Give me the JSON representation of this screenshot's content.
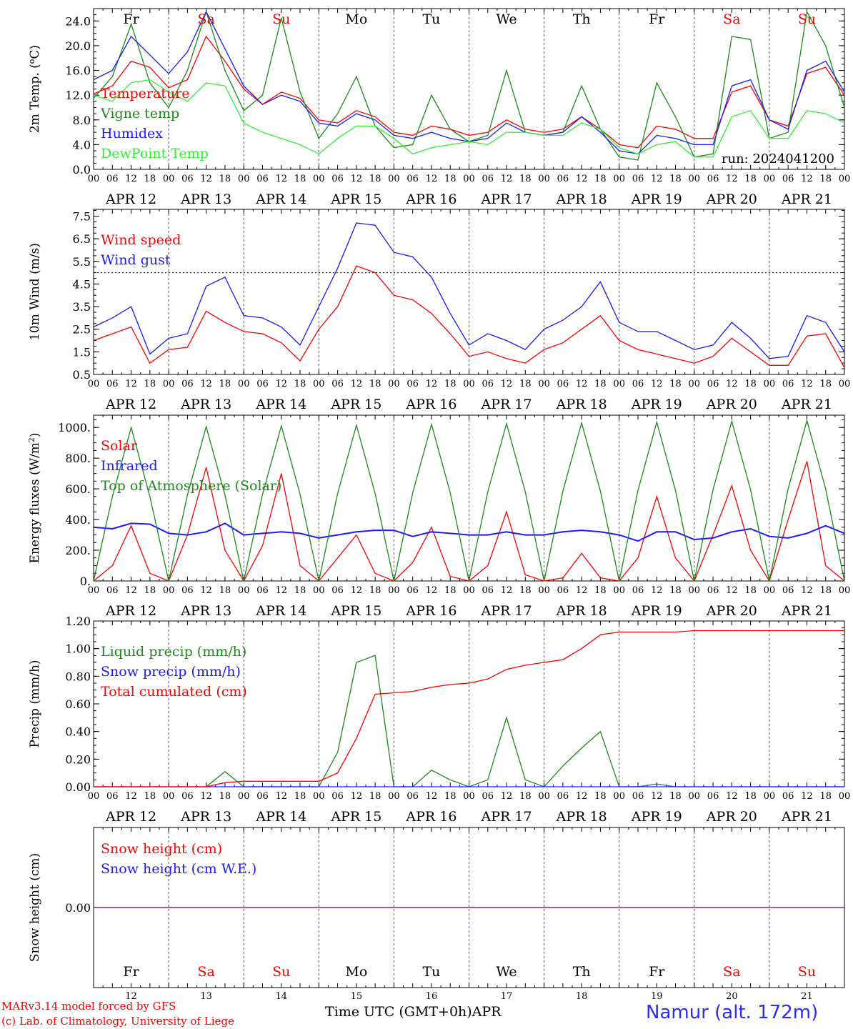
{
  "colors": {
    "red": "#ff0000",
    "green": "#1a8a1a",
    "blue": "#1a1aff",
    "lightgreen": "#33ee33",
    "purple": "#7a1a9a",
    "weekend": "#ff0000",
    "weekday": "#000000"
  },
  "days": [
    {
      "dow": "Fr",
      "date": "APR 12",
      "num": "12",
      "weekend": false
    },
    {
      "dow": "Sa",
      "date": "APR 13",
      "num": "13",
      "weekend": true
    },
    {
      "dow": "Su",
      "date": "APR 14",
      "num": "14",
      "weekend": true
    },
    {
      "dow": "Mo",
      "date": "APR 15",
      "num": "15",
      "weekend": false
    },
    {
      "dow": "Tu",
      "date": "APR 16",
      "num": "16",
      "weekend": false
    },
    {
      "dow": "We",
      "date": "APR 17",
      "num": "17",
      "weekend": false
    },
    {
      "dow": "Th",
      "date": "APR 18",
      "num": "18",
      "weekend": false
    },
    {
      "dow": "Fr",
      "date": "APR 19",
      "num": "19",
      "weekend": false
    },
    {
      "dow": "Sa",
      "date": "APR 20",
      "num": "20",
      "weekend": true
    },
    {
      "dow": "Su",
      "date": "APR 21",
      "num": "21",
      "weekend": true
    }
  ],
  "hour_labels": [
    "00",
    "06",
    "12",
    "18"
  ],
  "footer": {
    "model_line": "MARv3.14 model forced by GFS",
    "credit_line": "(c) Lab. of Climatology, University of Liege",
    "xlabel": "Time UTC (GMT+0h)",
    "month": "APR",
    "location": "Namur (alt. 172m)"
  },
  "chart_data": [
    {
      "type": "line",
      "ylabel": "2m Temp. (oC)",
      "ylim": [
        0,
        26
      ],
      "yticks": [
        0.0,
        4.0,
        8.0,
        12.0,
        16.0,
        20.0,
        24.0
      ],
      "ytick_labels": [
        "0.0",
        "4.0",
        "8.0",
        "12.0",
        "16.0",
        "20.0",
        "24.0"
      ],
      "annotation": "run: 2024041200",
      "x_hours": [
        0,
        6,
        12,
        18,
        24,
        30,
        36,
        42,
        48,
        54,
        60,
        66,
        72,
        78,
        84,
        90,
        96,
        102,
        108,
        114,
        120,
        126,
        132,
        138,
        144,
        150,
        156,
        162,
        168,
        174,
        180,
        186,
        192,
        198,
        204,
        210,
        216,
        222,
        228,
        234,
        240
      ],
      "series": [
        {
          "name": "Temperature",
          "color": "red",
          "values": [
            12.2,
            13.5,
            17.5,
            16.5,
            13.2,
            14.5,
            21.5,
            17.5,
            13.0,
            10.5,
            12.5,
            11.5,
            8.0,
            7.5,
            9.5,
            8.5,
            6.0,
            5.5,
            7.0,
            6.5,
            5.5,
            6.0,
            8.0,
            6.5,
            6.0,
            6.5,
            8.5,
            6.5,
            4.0,
            3.5,
            7.0,
            6.5,
            5.0,
            5.0,
            12.5,
            13.5,
            8.0,
            7.0,
            15.5,
            16.5,
            12.0
          ]
        },
        {
          "name": "Vigne temp",
          "color": "green",
          "values": [
            11.5,
            15.0,
            23.5,
            14.0,
            10.0,
            16.0,
            25.5,
            16.0,
            9.5,
            12.0,
            24.5,
            12.5,
            5.0,
            9.0,
            15.0,
            7.0,
            3.5,
            4.0,
            12.0,
            6.5,
            4.5,
            5.5,
            16.0,
            6.0,
            5.5,
            6.0,
            13.5,
            6.5,
            2.0,
            1.5,
            14.0,
            8.5,
            2.0,
            2.5,
            21.5,
            21.0,
            5.0,
            6.0,
            25.5,
            20.0,
            10.0
          ]
        },
        {
          "name": "Humidex",
          "color": "blue",
          "values": [
            14.5,
            16.0,
            21.5,
            18.5,
            15.5,
            19.0,
            25.5,
            19.5,
            13.5,
            10.5,
            12.0,
            11.0,
            7.5,
            7.0,
            9.0,
            8.0,
            5.5,
            5.0,
            6.0,
            5.0,
            4.5,
            5.0,
            7.5,
            6.0,
            5.5,
            6.0,
            8.5,
            6.0,
            3.0,
            2.5,
            5.5,
            5.0,
            4.0,
            4.0,
            13.5,
            14.5,
            8.0,
            6.5,
            16.0,
            17.5,
            12.5
          ]
        },
        {
          "name": "DewPoint Temp",
          "color": "lightgreen",
          "values": [
            12.0,
            11.0,
            14.0,
            14.5,
            12.5,
            11.0,
            14.0,
            13.5,
            7.5,
            6.0,
            5.0,
            4.0,
            2.5,
            5.0,
            7.0,
            7.0,
            5.0,
            2.5,
            3.5,
            4.0,
            4.5,
            4.0,
            6.0,
            6.0,
            5.5,
            5.5,
            7.5,
            6.5,
            3.5,
            2.5,
            4.0,
            4.5,
            2.0,
            2.0,
            8.5,
            9.5,
            5.0,
            5.0,
            9.5,
            9.0,
            7.5
          ]
        }
      ]
    },
    {
      "type": "line",
      "ylabel": "10m Wind (m/s)",
      "ylim": [
        0.5,
        7.8
      ],
      "yticks": [
        0.5,
        1.5,
        2.5,
        3.5,
        4.5,
        5.5,
        6.5,
        7.5
      ],
      "ytick_labels": [
        "0.5",
        "1.5",
        "2.5",
        "3.5",
        "4.5",
        "5.5",
        "6.5",
        "7.5"
      ],
      "reference_line": 5.0,
      "x_hours": [
        0,
        6,
        12,
        18,
        24,
        30,
        36,
        42,
        48,
        54,
        60,
        66,
        72,
        78,
        84,
        90,
        96,
        102,
        108,
        114,
        120,
        126,
        132,
        138,
        144,
        150,
        156,
        162,
        168,
        174,
        180,
        186,
        192,
        198,
        204,
        210,
        216,
        222,
        228,
        234,
        240
      ],
      "series": [
        {
          "name": "Wind speed",
          "color": "red",
          "values": [
            2.0,
            2.3,
            2.6,
            1.0,
            1.6,
            1.7,
            3.3,
            2.8,
            2.4,
            2.3,
            1.9,
            1.1,
            2.5,
            3.5,
            5.3,
            5.0,
            4.0,
            3.8,
            3.2,
            2.3,
            1.3,
            1.5,
            1.2,
            1.0,
            1.6,
            1.9,
            2.5,
            3.1,
            2.0,
            1.6,
            1.4,
            1.2,
            1.0,
            1.3,
            2.1,
            1.5,
            0.9,
            0.9,
            2.2,
            2.3,
            0.8
          ]
        },
        {
          "name": "Wind gust",
          "color": "blue",
          "values": [
            2.6,
            3.0,
            3.5,
            1.4,
            2.1,
            2.3,
            4.4,
            4.8,
            3.1,
            3.0,
            2.6,
            1.8,
            3.5,
            5.2,
            7.2,
            7.1,
            5.9,
            5.7,
            4.8,
            3.2,
            1.8,
            2.3,
            2.0,
            1.6,
            2.5,
            2.9,
            3.5,
            4.6,
            2.8,
            2.4,
            2.4,
            2.0,
            1.6,
            1.8,
            2.8,
            2.1,
            1.2,
            1.3,
            3.1,
            2.8,
            1.5
          ]
        }
      ]
    },
    {
      "type": "line",
      "ylabel": "Energy fluxes (W/m2)",
      "ylim": [
        0,
        1080
      ],
      "yticks": [
        0,
        200,
        400,
        600,
        800,
        1000
      ],
      "ytick_labels": [
        "0.",
        "200.",
        "400.",
        "600.",
        "800.",
        "1000."
      ],
      "x_hours": [
        0,
        6,
        12,
        18,
        24,
        30,
        36,
        42,
        48,
        54,
        60,
        66,
        72,
        78,
        84,
        90,
        96,
        102,
        108,
        114,
        120,
        126,
        132,
        138,
        144,
        150,
        156,
        162,
        168,
        174,
        180,
        186,
        192,
        198,
        204,
        210,
        216,
        222,
        228,
        234,
        240
      ],
      "series": [
        {
          "name": "Solar",
          "color": "red",
          "values": [
            0,
            100,
            360,
            50,
            0,
            300,
            740,
            200,
            0,
            230,
            700,
            100,
            0,
            150,
            300,
            50,
            0,
            120,
            350,
            30,
            0,
            100,
            450,
            40,
            0,
            20,
            180,
            20,
            0,
            150,
            550,
            150,
            0,
            300,
            620,
            200,
            0,
            400,
            780,
            100,
            0
          ]
        },
        {
          "name": "Infrared",
          "color": "blue",
          "values": [
            350,
            340,
            375,
            370,
            310,
            300,
            320,
            375,
            300,
            310,
            320,
            310,
            280,
            300,
            320,
            330,
            330,
            290,
            320,
            310,
            300,
            300,
            320,
            300,
            300,
            320,
            330,
            320,
            300,
            260,
            320,
            320,
            270,
            280,
            320,
            340,
            290,
            280,
            310,
            360,
            310
          ]
        },
        {
          "name": "Top of Atmosphere (Solar)",
          "color": "green",
          "values": [
            0,
            550,
            1000,
            550,
            0,
            560,
            1005,
            560,
            0,
            565,
            1010,
            565,
            0,
            570,
            1015,
            570,
            0,
            575,
            1020,
            575,
            0,
            580,
            1025,
            580,
            0,
            585,
            1030,
            585,
            0,
            590,
            1035,
            590,
            0,
            595,
            1040,
            595,
            0,
            600,
            1045,
            600,
            0
          ]
        }
      ]
    },
    {
      "type": "line",
      "ylabel": "Precip (mm/h)",
      "ylim": [
        0,
        1.2
      ],
      "yticks": [
        0.0,
        0.2,
        0.4,
        0.6,
        0.8,
        1.0,
        1.2
      ],
      "ytick_labels": [
        "0.00",
        "0.20",
        "0.40",
        "0.60",
        "0.80",
        "1.00",
        "1.20"
      ],
      "x_hours": [
        0,
        6,
        12,
        18,
        24,
        30,
        36,
        42,
        48,
        54,
        60,
        66,
        72,
        78,
        84,
        90,
        96,
        102,
        108,
        114,
        120,
        126,
        132,
        138,
        144,
        150,
        156,
        162,
        168,
        174,
        180,
        186,
        192,
        198,
        204,
        210,
        216,
        222,
        228,
        234,
        240
      ],
      "series": [
        {
          "name": "Liquid precip (mm/h)",
          "color": "green",
          "values": [
            0,
            0,
            0,
            0,
            0,
            0,
            0,
            0.11,
            0,
            0,
            0,
            0,
            0,
            0.25,
            0.9,
            0.95,
            0,
            0,
            0.12,
            0.05,
            0,
            0.05,
            0.5,
            0.05,
            0,
            0.15,
            0.28,
            0.4,
            0,
            0,
            0.02,
            0,
            0,
            0,
            0,
            0,
            0,
            0,
            0,
            0,
            0
          ]
        },
        {
          "name": "Snow precip (mm/h)",
          "color": "blue",
          "values": [
            0,
            0,
            0,
            0,
            0,
            0,
            0,
            0,
            0,
            0,
            0,
            0,
            0,
            0,
            0,
            0,
            0,
            0,
            0,
            0,
            0,
            0,
            0,
            0,
            0,
            0,
            0,
            0,
            0,
            0,
            0,
            0,
            0,
            0,
            0,
            0,
            0,
            0,
            0,
            0,
            0
          ]
        },
        {
          "name": "Total cumulated (cm)",
          "color": "red",
          "values": [
            0,
            0,
            0,
            0,
            0,
            0,
            0,
            0.03,
            0.04,
            0.04,
            0.04,
            0.04,
            0.04,
            0.1,
            0.35,
            0.67,
            0.68,
            0.69,
            0.72,
            0.74,
            0.75,
            0.78,
            0.85,
            0.88,
            0.9,
            0.92,
            1.0,
            1.1,
            1.12,
            1.12,
            1.12,
            1.12,
            1.13,
            1.13,
            1.13,
            1.13,
            1.13,
            1.13,
            1.13,
            1.13,
            1.13
          ]
        }
      ]
    },
    {
      "type": "line",
      "ylabel": "Snow height (cm)",
      "ylim": [
        -1,
        1
      ],
      "yticks": [
        0.0
      ],
      "ytick_labels": [
        "0.00"
      ],
      "x_hours": [
        0,
        240
      ],
      "series": [
        {
          "name": "Snow height (cm)",
          "color": "red",
          "values": [
            0,
            0
          ]
        },
        {
          "name": "Snow height (cm W.E.)",
          "color": "blue",
          "values": [
            0,
            0
          ]
        }
      ]
    }
  ]
}
